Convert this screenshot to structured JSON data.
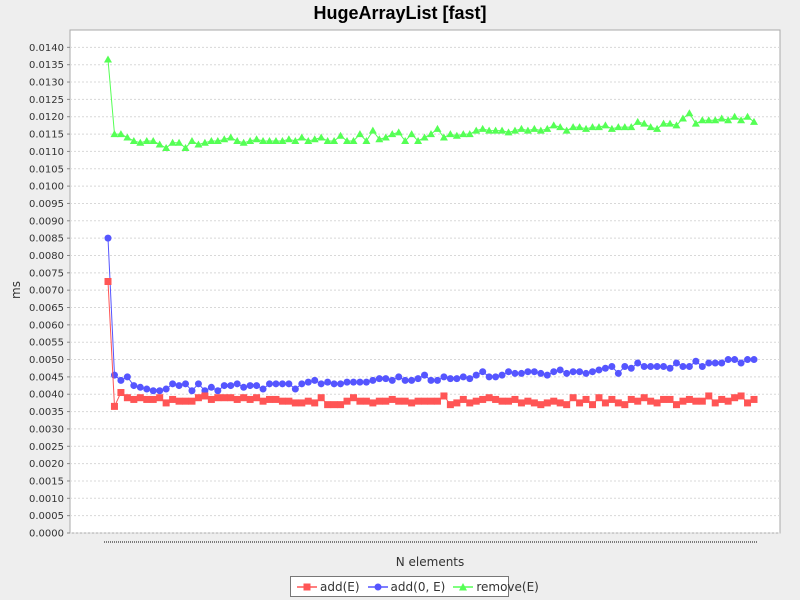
{
  "chart_data": {
    "type": "line",
    "title": "HugeArrayList [fast]",
    "xlabel": "N elements",
    "ylabel": "ms",
    "ylim": [
      0,
      0.0145
    ],
    "yticks": [
      "0.0000",
      "0.0005",
      "0.0010",
      "0.0015",
      "0.0020",
      "0.0025",
      "0.0030",
      "0.0035",
      "0.0040",
      "0.0045",
      "0.0050",
      "0.0055",
      "0.0060",
      "0.0065",
      "0.0070",
      "0.0075",
      "0.0080",
      "0.0085",
      "0.0090",
      "0.0095",
      "0.0100",
      "0.0105",
      "0.0110",
      "0.0115",
      "0.0120",
      "0.0125",
      "0.0130",
      "0.0135",
      "0.0140"
    ],
    "grid": true,
    "legend_position": "bottom",
    "series": [
      {
        "name": "add(E)",
        "color": "#ff5555",
        "marker": "square",
        "values": [
          0.00725,
          0.00365,
          0.00405,
          0.0039,
          0.00385,
          0.0039,
          0.00385,
          0.00385,
          0.0039,
          0.00375,
          0.00385,
          0.0038,
          0.0038,
          0.0038,
          0.0039,
          0.00395,
          0.00385,
          0.0039,
          0.0039,
          0.0039,
          0.00385,
          0.0039,
          0.00385,
          0.0039,
          0.0038,
          0.00385,
          0.00385,
          0.0038,
          0.0038,
          0.00375,
          0.00375,
          0.0038,
          0.00375,
          0.0039,
          0.0037,
          0.0037,
          0.0037,
          0.0038,
          0.0039,
          0.0038,
          0.0038,
          0.00375,
          0.0038,
          0.0038,
          0.00385,
          0.0038,
          0.0038,
          0.00375,
          0.0038,
          0.0038,
          0.0038,
          0.0038,
          0.00395,
          0.0037,
          0.00375,
          0.00385,
          0.00375,
          0.0038,
          0.00385,
          0.0039,
          0.00385,
          0.0038,
          0.0038,
          0.00385,
          0.00375,
          0.0038,
          0.00375,
          0.0037,
          0.00375,
          0.0038,
          0.00375,
          0.0037,
          0.0039,
          0.00375,
          0.00385,
          0.0037,
          0.0039,
          0.00375,
          0.00385,
          0.00375,
          0.0037,
          0.00385,
          0.0038,
          0.0039,
          0.0038,
          0.00375,
          0.00385,
          0.00385,
          0.0037,
          0.0038,
          0.00385,
          0.0038,
          0.0038,
          0.00395,
          0.00375,
          0.00385,
          0.0038,
          0.0039,
          0.00395,
          0.00375,
          0.00385
        ]
      },
      {
        "name": "add(0, E)",
        "color": "#5555ff",
        "marker": "circle",
        "values": [
          0.0085,
          0.00455,
          0.0044,
          0.0045,
          0.00425,
          0.0042,
          0.00415,
          0.0041,
          0.0041,
          0.00415,
          0.0043,
          0.00425,
          0.0043,
          0.0041,
          0.0043,
          0.0041,
          0.0042,
          0.0041,
          0.00425,
          0.00425,
          0.0043,
          0.0042,
          0.00425,
          0.00425,
          0.00415,
          0.0043,
          0.0043,
          0.0043,
          0.0043,
          0.00415,
          0.0043,
          0.00435,
          0.0044,
          0.0043,
          0.00435,
          0.0043,
          0.0043,
          0.00435,
          0.00435,
          0.00435,
          0.00435,
          0.0044,
          0.00445,
          0.00445,
          0.0044,
          0.0045,
          0.0044,
          0.0044,
          0.00445,
          0.00455,
          0.0044,
          0.0044,
          0.0045,
          0.00445,
          0.00445,
          0.0045,
          0.00445,
          0.00455,
          0.00465,
          0.0045,
          0.0045,
          0.00455,
          0.00465,
          0.0046,
          0.0046,
          0.00465,
          0.00465,
          0.0046,
          0.00455,
          0.00465,
          0.0047,
          0.0046,
          0.00465,
          0.00465,
          0.0046,
          0.00465,
          0.0047,
          0.00475,
          0.0048,
          0.0046,
          0.0048,
          0.00475,
          0.0049,
          0.0048,
          0.0048,
          0.0048,
          0.0048,
          0.00475,
          0.0049,
          0.0048,
          0.0048,
          0.00495,
          0.0048,
          0.0049,
          0.0049,
          0.0049,
          0.005,
          0.005,
          0.0049,
          0.005,
          0.005
        ]
      },
      {
        "name": "remove(E)",
        "color": "#55ff55",
        "marker": "triangle",
        "values": [
          0.01365,
          0.0115,
          0.0115,
          0.0114,
          0.0113,
          0.01125,
          0.0113,
          0.0113,
          0.0112,
          0.0111,
          0.01125,
          0.01125,
          0.0111,
          0.0113,
          0.0112,
          0.01125,
          0.0113,
          0.0113,
          0.01135,
          0.0114,
          0.0113,
          0.01125,
          0.0113,
          0.01135,
          0.0113,
          0.0113,
          0.0113,
          0.0113,
          0.01135,
          0.0113,
          0.0114,
          0.0113,
          0.01135,
          0.0114,
          0.0113,
          0.0113,
          0.01145,
          0.0113,
          0.0113,
          0.0115,
          0.0113,
          0.0116,
          0.01135,
          0.0114,
          0.0115,
          0.01155,
          0.0113,
          0.0115,
          0.0113,
          0.0114,
          0.0115,
          0.01165,
          0.0114,
          0.0115,
          0.01145,
          0.0115,
          0.0115,
          0.0116,
          0.01165,
          0.0116,
          0.0116,
          0.0116,
          0.01155,
          0.0116,
          0.01165,
          0.0116,
          0.01165,
          0.0116,
          0.01165,
          0.01175,
          0.0117,
          0.0116,
          0.0117,
          0.0117,
          0.01165,
          0.0117,
          0.0117,
          0.01175,
          0.01165,
          0.0117,
          0.0117,
          0.0117,
          0.01185,
          0.0118,
          0.0117,
          0.01165,
          0.0118,
          0.0118,
          0.01175,
          0.01195,
          0.0121,
          0.0118,
          0.0119,
          0.0119,
          0.0119,
          0.01195,
          0.0119,
          0.012,
          0.0119,
          0.012,
          0.01185
        ]
      }
    ]
  }
}
